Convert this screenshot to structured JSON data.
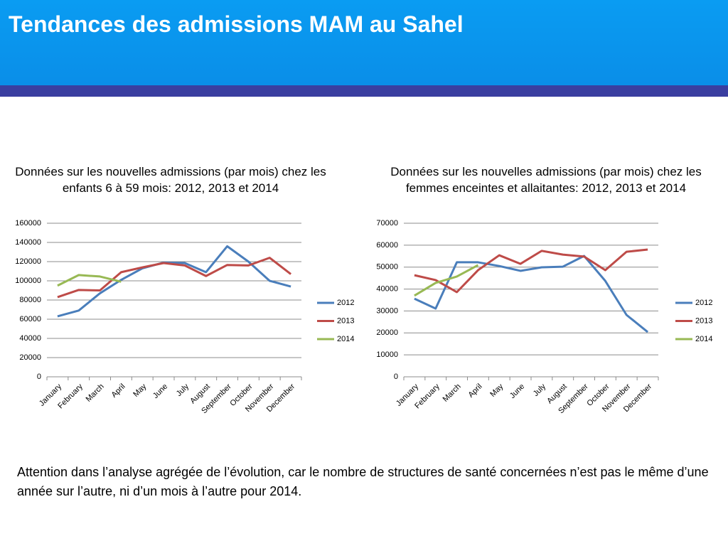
{
  "header": {
    "title": "Tendances des admissions MAM au Sahel"
  },
  "chart_data": [
    {
      "type": "line",
      "title": "Données sur les nouvelles admissions (par mois) chez les enfants 6 à 59 mois: 2012, 2013 et 2014",
      "categories": [
        "January",
        "February",
        "March",
        "April",
        "May",
        "June",
        "July",
        "August",
        "September",
        "October",
        "November",
        "December"
      ],
      "series": [
        {
          "name": "2012",
          "color": "#4a7ebb",
          "values": [
            63000,
            69000,
            87000,
            101000,
            113000,
            119000,
            118500,
            109000,
            136000,
            120000,
            100000,
            94000
          ]
        },
        {
          "name": "2013",
          "color": "#be4b48",
          "values": [
            83000,
            90500,
            90000,
            109000,
            114000,
            118500,
            116000,
            105000,
            116500,
            116000,
            124000,
            107000
          ]
        },
        {
          "name": "2014",
          "color": "#98b954",
          "values": [
            95000,
            106000,
            104500,
            99000,
            null,
            null,
            null,
            null,
            null,
            null,
            null,
            null
          ]
        }
      ],
      "ylim": [
        0,
        160000
      ],
      "yticks": [
        0,
        20000,
        40000,
        60000,
        80000,
        100000,
        120000,
        140000,
        160000
      ],
      "grid": true,
      "legend": "right"
    },
    {
      "type": "line",
      "title": "Données sur les nouvelles admissions (par mois) chez les femmes enceintes et allaitantes: 2012, 2013 et 2014",
      "categories": [
        "January",
        "February",
        "March",
        "April",
        "May",
        "June",
        "July",
        "August",
        "September",
        "October",
        "November",
        "December"
      ],
      "series": [
        {
          "name": "2012",
          "color": "#4a7ebb",
          "values": [
            35600,
            31100,
            52200,
            52200,
            50500,
            48300,
            49900,
            50200,
            55100,
            43700,
            28200,
            20400
          ]
        },
        {
          "name": "2013",
          "color": "#be4b48",
          "values": [
            46300,
            44100,
            38600,
            48600,
            55400,
            51500,
            57400,
            55700,
            54800,
            48600,
            57000,
            58000
          ]
        },
        {
          "name": "2014",
          "color": "#98b954",
          "values": [
            37000,
            42800,
            45700,
            50900,
            null,
            null,
            null,
            null,
            null,
            null,
            null,
            null
          ]
        }
      ],
      "ylim": [
        0,
        70000
      ],
      "yticks": [
        0,
        10000,
        20000,
        30000,
        40000,
        50000,
        60000,
        70000
      ],
      "grid": true,
      "legend": "right"
    }
  ],
  "note": "Attention dans l’analyse agrégée de l’évolution, car le nombre de structures de santé concernées n’est pas le même d’une année sur l’autre, ni d’un mois à l’autre pour 2014."
}
